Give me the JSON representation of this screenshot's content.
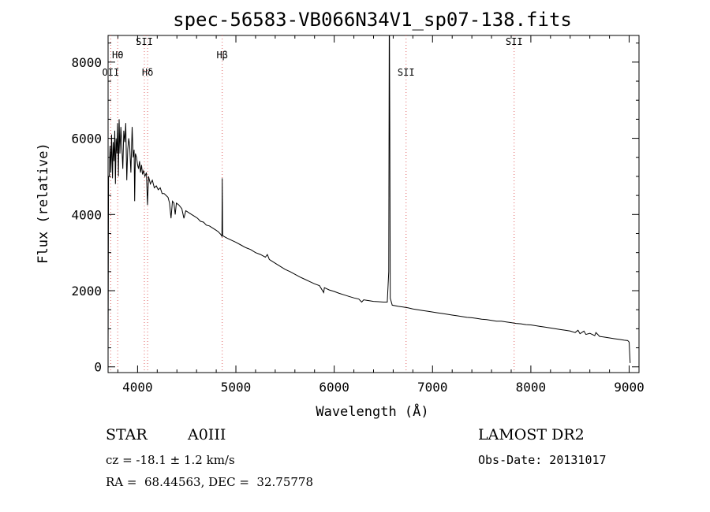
{
  "chart_data": {
    "type": "line",
    "title": "spec-56583-VB066N34V1_sp07-138.fits",
    "xlabel": "Wavelength (Å)",
    "ylabel": "Flux (relative)",
    "xlim": [
      3700,
      9100
    ],
    "ylim": [
      -150,
      8700
    ],
    "x_ticks": [
      4000,
      5000,
      6000,
      7000,
      8000,
      9000
    ],
    "y_ticks": [
      0,
      2000,
      4000,
      6000,
      8000
    ],
    "grid": false,
    "series": [
      {
        "points": [
          [
            3700,
            450
          ],
          [
            3705,
            4980
          ],
          [
            3712,
            5000
          ],
          [
            3720,
            5800
          ],
          [
            3728,
            5100
          ],
          [
            3735,
            6100
          ],
          [
            3745,
            4950
          ],
          [
            3752,
            5900
          ],
          [
            3760,
            5400
          ],
          [
            3768,
            6200
          ],
          [
            3775,
            4800
          ],
          [
            3782,
            6000
          ],
          [
            3790,
            5600
          ],
          [
            3797,
            6400
          ],
          [
            3805,
            5000
          ],
          [
            3812,
            6500
          ],
          [
            3820,
            5600
          ],
          [
            3830,
            6300
          ],
          [
            3840,
            5800
          ],
          [
            3850,
            5200
          ],
          [
            3860,
            6200
          ],
          [
            3870,
            5900
          ],
          [
            3880,
            6400
          ],
          [
            3890,
            4900
          ],
          [
            3900,
            5700
          ],
          [
            3910,
            6000
          ],
          [
            3920,
            5800
          ],
          [
            3932,
            5100
          ],
          [
            3945,
            6300
          ],
          [
            3955,
            5500
          ],
          [
            3965,
            5700
          ],
          [
            3970,
            4350
          ],
          [
            3978,
            5600
          ],
          [
            3990,
            5500
          ],
          [
            4000,
            5300
          ],
          [
            4010,
            5200
          ],
          [
            4020,
            5400
          ],
          [
            4030,
            5100
          ],
          [
            4040,
            5300
          ],
          [
            4050,
            5050
          ],
          [
            4060,
            5150
          ],
          [
            4075,
            5000
          ],
          [
            4090,
            5100
          ],
          [
            4101,
            4250
          ],
          [
            4112,
            5000
          ],
          [
            4130,
            4800
          ],
          [
            4150,
            4900
          ],
          [
            4170,
            4700
          ],
          [
            4190,
            4750
          ],
          [
            4210,
            4650
          ],
          [
            4230,
            4700
          ],
          [
            4250,
            4550
          ],
          [
            4270,
            4550
          ],
          [
            4290,
            4500
          ],
          [
            4310,
            4450
          ],
          [
            4325,
            4300
          ],
          [
            4340,
            3900
          ],
          [
            4355,
            4350
          ],
          [
            4370,
            4300
          ],
          [
            4383,
            4000
          ],
          [
            4395,
            4300
          ],
          [
            4420,
            4250
          ],
          [
            4450,
            4150
          ],
          [
            4471,
            3900
          ],
          [
            4490,
            4100
          ],
          [
            4520,
            4050
          ],
          [
            4550,
            4000
          ],
          [
            4580,
            3950
          ],
          [
            4610,
            3900
          ],
          [
            4640,
            3820
          ],
          [
            4670,
            3800
          ],
          [
            4700,
            3720
          ],
          [
            4730,
            3700
          ],
          [
            4760,
            3650
          ],
          [
            4790,
            3600
          ],
          [
            4820,
            3550
          ],
          [
            4845,
            3480
          ],
          [
            4858,
            3430
          ],
          [
            4861,
            4950
          ],
          [
            4865,
            3450
          ],
          [
            4880,
            3420
          ],
          [
            4910,
            3380
          ],
          [
            4950,
            3330
          ],
          [
            5000,
            3270
          ],
          [
            5050,
            3200
          ],
          [
            5100,
            3130
          ],
          [
            5150,
            3080
          ],
          [
            5200,
            3000
          ],
          [
            5250,
            2950
          ],
          [
            5300,
            2880
          ],
          [
            5320,
            2950
          ],
          [
            5340,
            2820
          ],
          [
            5400,
            2720
          ],
          [
            5450,
            2640
          ],
          [
            5500,
            2560
          ],
          [
            5550,
            2500
          ],
          [
            5600,
            2430
          ],
          [
            5650,
            2360
          ],
          [
            5700,
            2300
          ],
          [
            5750,
            2240
          ],
          [
            5800,
            2180
          ],
          [
            5850,
            2130
          ],
          [
            5893,
            1950
          ],
          [
            5900,
            2080
          ],
          [
            5950,
            2020
          ],
          [
            6000,
            1980
          ],
          [
            6050,
            1930
          ],
          [
            6100,
            1890
          ],
          [
            6150,
            1850
          ],
          [
            6200,
            1810
          ],
          [
            6250,
            1780
          ],
          [
            6280,
            1700
          ],
          [
            6300,
            1760
          ],
          [
            6350,
            1740
          ],
          [
            6400,
            1720
          ],
          [
            6450,
            1710
          ],
          [
            6500,
            1700
          ],
          [
            6540,
            1700
          ],
          [
            6555,
            2500
          ],
          [
            6560,
            8700
          ],
          [
            6562,
            8700
          ],
          [
            6565,
            6300
          ],
          [
            6570,
            1800
          ],
          [
            6590,
            1620
          ],
          [
            6650,
            1590
          ],
          [
            6700,
            1570
          ],
          [
            6750,
            1550
          ],
          [
            6800,
            1520
          ],
          [
            6850,
            1500
          ],
          [
            6900,
            1480
          ],
          [
            6950,
            1460
          ],
          [
            7000,
            1440
          ],
          [
            7050,
            1420
          ],
          [
            7100,
            1400
          ],
          [
            7150,
            1380
          ],
          [
            7200,
            1360
          ],
          [
            7250,
            1340
          ],
          [
            7300,
            1320
          ],
          [
            7350,
            1300
          ],
          [
            7400,
            1290
          ],
          [
            7450,
            1270
          ],
          [
            7500,
            1250
          ],
          [
            7550,
            1240
          ],
          [
            7600,
            1220
          ],
          [
            7650,
            1200
          ],
          [
            7700,
            1200
          ],
          [
            7750,
            1180
          ],
          [
            7800,
            1160
          ],
          [
            7850,
            1140
          ],
          [
            7900,
            1130
          ],
          [
            7950,
            1110
          ],
          [
            8000,
            1100
          ],
          [
            8050,
            1080
          ],
          [
            8100,
            1060
          ],
          [
            8150,
            1040
          ],
          [
            8200,
            1020
          ],
          [
            8250,
            1000
          ],
          [
            8300,
            980
          ],
          [
            8350,
            960
          ],
          [
            8400,
            940
          ],
          [
            8450,
            900
          ],
          [
            8480,
            960
          ],
          [
            8500,
            870
          ],
          [
            8540,
            940
          ],
          [
            8560,
            850
          ],
          [
            8600,
            880
          ],
          [
            8650,
            820
          ],
          [
            8662,
            900
          ],
          [
            8700,
            800
          ],
          [
            8750,
            780
          ],
          [
            8800,
            760
          ],
          [
            8850,
            740
          ],
          [
            8900,
            720
          ],
          [
            8950,
            700
          ],
          [
            8985,
            690
          ],
          [
            9000,
            650
          ],
          [
            9010,
            100
          ]
        ]
      }
    ],
    "lines": [
      {
        "label": "OII",
        "x": 3727,
        "label_y": 7650
      },
      {
        "label": "Hθ",
        "x": 3798,
        "label_y": 8100
      },
      {
        "label": "SII",
        "x": 4069,
        "label_y": 8450
      },
      {
        "label": "Hδ",
        "x": 4102,
        "label_y": 7650
      },
      {
        "label": "Hβ",
        "x": 4861,
        "label_y": 8100
      },
      {
        "label": "SII",
        "x": 6731,
        "label_y": 7650
      },
      {
        "label": "SII",
        "x": 7830,
        "label_y": 8450
      }
    ]
  },
  "footer": {
    "obj_type": "STAR",
    "obj_class": "A0III",
    "survey": "LAMOST DR2",
    "cz": "cz = -18.1 ± 1.2 km/s",
    "obs_date": "Obs-Date: 20131017",
    "radec": "RA =  68.44563, DEC =  32.75778"
  }
}
